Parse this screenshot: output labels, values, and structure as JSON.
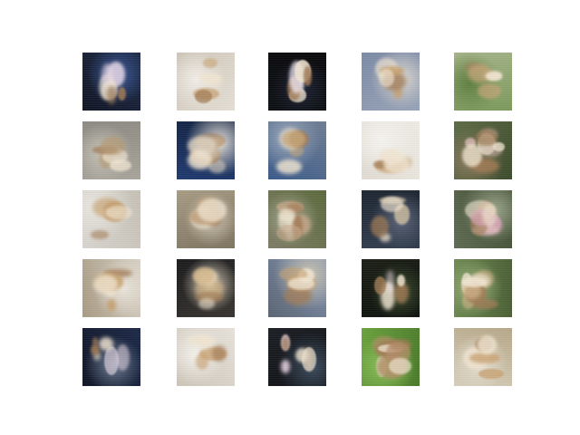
{
  "figure": {
    "rows": 5,
    "cols": 5,
    "samples": [
      {
        "bg": [
          "#1e2a4a",
          "#3a5a9a",
          "#0f1422"
        ],
        "fg": "#e8d8e8",
        "kind": "flower"
      },
      {
        "bg": [
          "#e6e0d6",
          "#f2efe9",
          "#cfc6b8"
        ],
        "fg": "#c9a77a",
        "kind": "blob"
      },
      {
        "bg": [
          "#0d0f14",
          "#1c2233",
          "#09090c"
        ],
        "fg": "#f0e8f4",
        "kind": "flower"
      },
      {
        "bg": [
          "#7c8aa6",
          "#dcd8d0",
          "#98a4b8"
        ],
        "fg": "#c9a06e",
        "kind": "blob"
      },
      {
        "bg": [
          "#7c9a5a",
          "#5e7f3e",
          "#a6b48a"
        ],
        "fg": "#caa67a",
        "kind": "blob"
      },
      {
        "bg": [
          "#a9a59c",
          "#c9c4b8",
          "#8c8a82"
        ],
        "fg": "#b69b74",
        "kind": "blob"
      },
      {
        "bg": [
          "#1f3a70",
          "#e2e0da",
          "#0f1e3c"
        ],
        "fg": "#ddd2c0",
        "kind": "mixed"
      },
      {
        "bg": [
          "#3a5a8a",
          "#98a8bc",
          "#6f7d92"
        ],
        "fg": "#c9a777",
        "kind": "blob"
      },
      {
        "bg": [
          "#efece6",
          "#f7f5f1",
          "#e2ddd4"
        ],
        "fg": "#c8a272",
        "kind": "blob"
      },
      {
        "bg": [
          "#5c6b44",
          "#8a7a5c",
          "#3c4a2c"
        ],
        "fg": "#d6b8b0",
        "kind": "mixed"
      },
      {
        "bg": [
          "#d9d6cf",
          "#ebe8e2",
          "#c7c2b8"
        ],
        "fg": "#c49d6b",
        "kind": "blob"
      },
      {
        "bg": [
          "#a89c84",
          "#cfc6b4",
          "#7e7460"
        ],
        "fg": "#bfa07a",
        "kind": "blob"
      },
      {
        "bg": [
          "#7f7c66",
          "#a2a88c",
          "#5b6a3c"
        ],
        "fg": "#c6a78a",
        "kind": "mixed"
      },
      {
        "bg": [
          "#2f3b4c",
          "#5a6478",
          "#1c2430"
        ],
        "fg": "#d9c7a6",
        "kind": "blob"
      },
      {
        "bg": [
          "#5f6b52",
          "#9aa48a",
          "#3c4a2e"
        ],
        "fg": "#d8a6b6",
        "kind": "mixed"
      },
      {
        "bg": [
          "#d8d2c6",
          "#ece6dc",
          "#a99b84"
        ],
        "fg": "#c69f6c",
        "kind": "blob"
      },
      {
        "bg": [
          "#1a1a1c",
          "#d6ccb6",
          "#383430"
        ],
        "fg": "#d6b583",
        "kind": "blob"
      },
      {
        "bg": [
          "#8294b2",
          "#c8c2b2",
          "#5a6472"
        ],
        "fg": "#c7a271",
        "kind": "blob"
      },
      {
        "bg": [
          "#0c100c",
          "#3a4a2c",
          "#1a1e14"
        ],
        "fg": "#e6d2e2",
        "kind": "flower"
      },
      {
        "bg": [
          "#6e8a52",
          "#9ab07a",
          "#4a5e34"
        ],
        "fg": "#d2b48a",
        "kind": "mixed"
      },
      {
        "bg": [
          "#1c2848",
          "#6a7a92",
          "#0e1424"
        ],
        "fg": "#e2d4e0",
        "kind": "flower"
      },
      {
        "bg": [
          "#e8e4dc",
          "#f4f1ec",
          "#cdc6b8"
        ],
        "fg": "#c9a070",
        "kind": "blob"
      },
      {
        "bg": [
          "#0e0f14",
          "#3a4a5c",
          "#1a1d22"
        ],
        "fg": "#e8d2e0",
        "kind": "flower"
      },
      {
        "bg": [
          "#6aa23c",
          "#8cc45a",
          "#4a7a2a"
        ],
        "fg": "#b68c6a",
        "kind": "mixed"
      },
      {
        "bg": [
          "#d8d0bc",
          "#e9e3d5",
          "#b7a889"
        ],
        "fg": "#c9a272",
        "kind": "blob"
      }
    ]
  }
}
